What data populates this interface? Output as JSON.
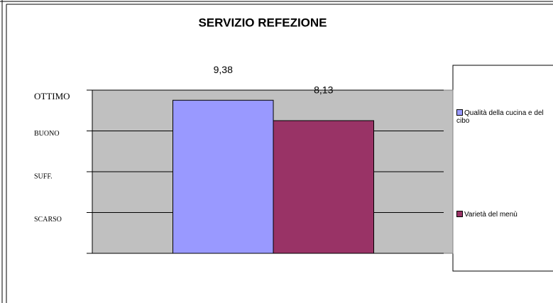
{
  "chart_data": {
    "type": "bar",
    "title": "SERVIZIO REFEZIONE",
    "categories": [
      null
    ],
    "series": [
      {
        "name": "Qualità della cucina e del cibo",
        "color": "#9999ff",
        "values": [
          9.38
        ],
        "value_labels": [
          "9,38"
        ]
      },
      {
        "name": "Varietà del menù",
        "color": "#993366",
        "values": [
          8.13
        ],
        "value_labels": [
          "8,13"
        ]
      }
    ],
    "ylim": [
      0,
      10
    ],
    "yticks": [
      {
        "value": 2.5,
        "label": "SCARSO"
      },
      {
        "value": 5,
        "label": "SUFF."
      },
      {
        "value": 7.5,
        "label": "BUONO"
      },
      {
        "value": 10,
        "label": "OTTIMO"
      }
    ],
    "grid": true,
    "plot_background": "#c0c0c0",
    "legend": "right"
  }
}
